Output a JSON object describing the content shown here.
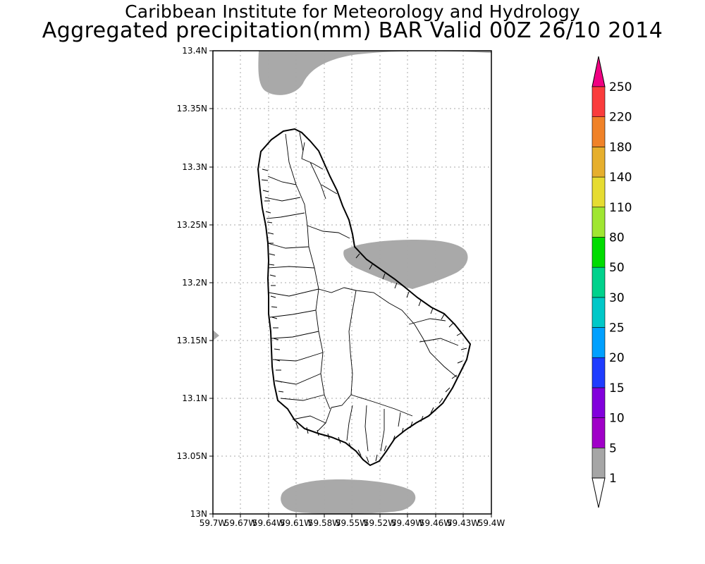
{
  "header": {
    "line1": "Caribbean Institute for Meteorology and Hydrology",
    "line2": "Aggregated precipitation(mm) BAR Valid 00Z 26/10 2014"
  },
  "map": {
    "region": "Barbados",
    "lat_range": [
      13.0,
      13.4
    ],
    "lon_range": [
      -59.7,
      -59.4
    ],
    "lat_ticks": [
      "13N",
      "13.05N",
      "13.1N",
      "13.15N",
      "13.2N",
      "13.25N",
      "13.3N",
      "13.35N",
      "13.4N"
    ],
    "lon_ticks": [
      "59.7W",
      "59.67W",
      "59.64W",
      "59.61W",
      "59.58W",
      "59.55W",
      "59.52W",
      "59.49W",
      "59.46W",
      "59.43W",
      "59.4W"
    ],
    "grid": true,
    "precip_fill_color": "#a9a9a9",
    "precip_areas_band": "1-5"
  },
  "colorbar": {
    "levels": [
      "1",
      "5",
      "10",
      "15",
      "20",
      "25",
      "30",
      "50",
      "80",
      "110",
      "140",
      "180",
      "220",
      "250"
    ],
    "colors": [
      "#a6a6a6",
      "#a000c8",
      "#8200dc",
      "#1e3cff",
      "#00a0ff",
      "#00c8c8",
      "#00d28c",
      "#00dc00",
      "#a0e632",
      "#e6dc32",
      "#e6af2d",
      "#f08228",
      "#fa3c3c",
      "#f00082"
    ],
    "below_color": "#ffffff",
    "above_color": "#f00082"
  }
}
